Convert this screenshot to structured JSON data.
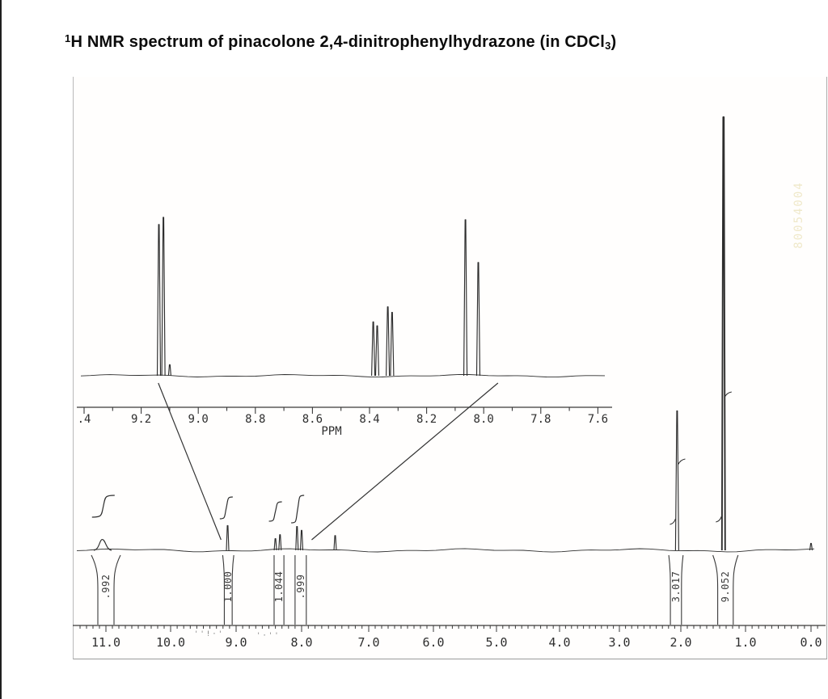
{
  "title": {
    "superscript": "1",
    "main": "H NMR spectrum of pinacolone 2,4-dinitrophenylhydrazone (in CDCl",
    "subscript": "3",
    "suffix": ")"
  },
  "watermark_text": "80054004",
  "scan_noise": [
    "''!·'",
    "'·''"
  ],
  "chart_data": [
    {
      "type": "line",
      "name": "aromatic-region-expansion-inset",
      "xlabel": "PPM",
      "x_axis": {
        "range": [
          9.4,
          7.55
        ],
        "tick_labels": [
          ".4",
          "9.2",
          "9.0",
          "8.8",
          "8.6",
          "8.4",
          "8.2",
          "8.0",
          "7.8",
          "7.6"
        ],
        "tick_ppm": [
          9.4,
          9.2,
          9.0,
          8.8,
          8.6,
          8.4,
          8.2,
          8.0,
          7.8,
          7.6
        ],
        "minor_tick_step": 0.1
      },
      "peaks": [
        {
          "ppm": 9.138,
          "height": 0.955,
          "width": 4
        },
        {
          "ppm": 9.122,
          "height": 1.0,
          "width": 4
        },
        {
          "ppm": 9.1,
          "height": 0.07,
          "width": 3
        },
        {
          "ppm": 8.387,
          "height": 0.34,
          "width": 4
        },
        {
          "ppm": 8.373,
          "height": 0.315,
          "width": 4
        },
        {
          "ppm": 8.336,
          "height": 0.435,
          "width": 4
        },
        {
          "ppm": 8.321,
          "height": 0.4,
          "width": 4
        },
        {
          "ppm": 8.064,
          "height": 0.985,
          "width": 4
        },
        {
          "ppm": 8.019,
          "height": 0.715,
          "width": 4
        }
      ]
    },
    {
      "type": "line",
      "name": "full-spectrum",
      "x_axis": {
        "range": [
          11.45,
          -0.15
        ],
        "tick_labels": [
          "11.0",
          "10.0",
          "9.0",
          "8.0",
          "7.0",
          "6.0",
          "5.0",
          "4.0",
          "3.0",
          "2.0",
          "1.0",
          "0.0"
        ],
        "tick_ppm": [
          11,
          10,
          9,
          8,
          7,
          6,
          5,
          4,
          3,
          2,
          1,
          0
        ],
        "minor_tick_step": 0.1
      },
      "peaks": [
        {
          "ppm": 11.05,
          "height": 0.025,
          "width": 22,
          "shape": "broad"
        },
        {
          "ppm": 9.13,
          "height": 0.057,
          "width": 3
        },
        {
          "ppm": 8.4,
          "height": 0.027,
          "width": 3
        },
        {
          "ppm": 8.33,
          "height": 0.036,
          "width": 3
        },
        {
          "ppm": 8.07,
          "height": 0.055,
          "width": 3
        },
        {
          "ppm": 8.0,
          "height": 0.046,
          "width": 3
        },
        {
          "ppm": 7.5,
          "height": 0.034,
          "width": 3
        },
        {
          "ppm": 2.06,
          "height": 0.322,
          "width": 4
        },
        {
          "ppm": 1.34,
          "height": 1.0,
          "width": 4,
          "bold": true
        },
        {
          "ppm": 0.0,
          "height": 0.016,
          "width": 3
        }
      ],
      "integrals": [
        {
          "value": ".992",
          "ppm_center": 11.0,
          "ppm_span": 0.25,
          "flare": 8
        },
        {
          "value": "1.000",
          "ppm_center": 9.12,
          "ppm_span": 0.12,
          "flare": 2
        },
        {
          "value": "1.044",
          "ppm_center": 8.345,
          "ppm_span": 0.15,
          "flare": 0
        },
        {
          "value": ".999",
          "ppm_center": 8.015,
          "ppm_span": 0.17,
          "flare": 0
        },
        {
          "value": "3.017",
          "ppm_center": 2.08,
          "ppm_span": 0.18,
          "flare": 2
        },
        {
          "value": "9.052",
          "ppm_center": 1.31,
          "ppm_span": 0.24,
          "flare": 6
        }
      ],
      "integral_curves": [
        {
          "ppm_center": 11.04
        },
        {
          "ppm_center": 9.15
        },
        {
          "ppm_center": 8.4
        },
        {
          "ppm_center": 8.06
        }
      ]
    }
  ],
  "annotations": {
    "connectors": [
      {
        "inset_ppm": 9.14,
        "main_ppm": 9.23
      },
      {
        "inset_ppm": 7.95,
        "main_ppm": 7.85
      }
    ]
  }
}
